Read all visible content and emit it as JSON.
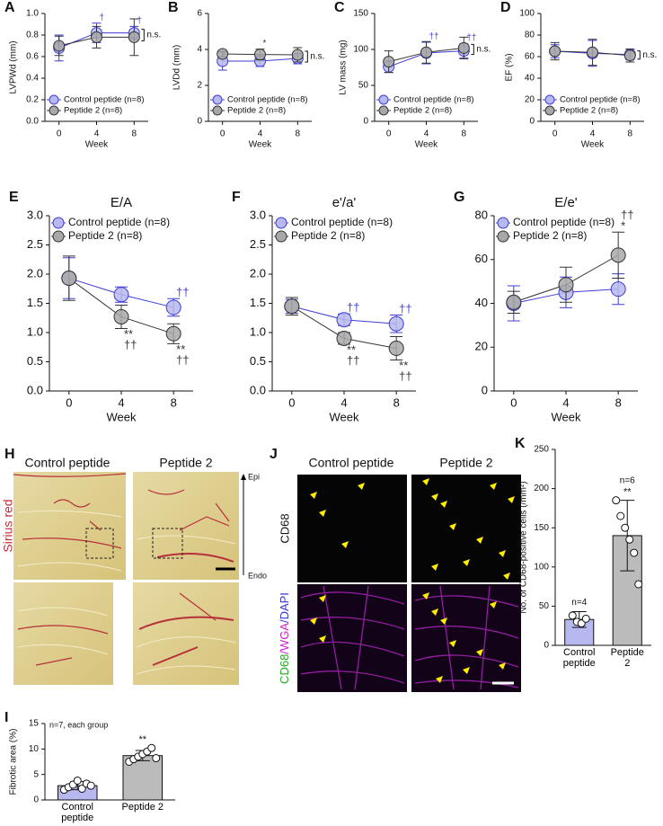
{
  "chart_data": [
    {
      "type": "line",
      "label": "A",
      "ylabel": "LVPWd (mm)",
      "xlabel": "Week",
      "x": [
        0,
        4,
        8
      ],
      "xlim": [
        -1.5,
        9.5
      ],
      "xticks": [
        0,
        4,
        8
      ],
      "ylim": [
        0,
        1
      ],
      "yticks": [
        {
          "value": 0,
          "label": "0.0"
        },
        0.2,
        0.4,
        0.6,
        0.8,
        {
          "value": 1,
          "label": "1.0"
        }
      ],
      "legend": "lower left",
      "bracket_label": "n.s.",
      "series": [
        {
          "name": "Control peptide (n=8)",
          "color": "#3d3dd6",
          "fill": "#b8b8f0",
          "values": [
            0.68,
            0.82,
            0.82
          ],
          "errors": [
            0.12,
            0.09,
            0.06
          ],
          "point_labels": [
            null,
            "†",
            "†"
          ],
          "label_position": "above"
        },
        {
          "name": "Peptide 2 (n=8)",
          "color": "#333333",
          "fill": "#a8a8a8",
          "values": [
            0.7,
            0.78,
            0.78
          ],
          "errors": [
            0.09,
            0.1,
            0.17
          ],
          "point_labels": [
            null,
            null,
            null
          ],
          "label_position": "above"
        }
      ]
    },
    {
      "type": "line",
      "label": "B",
      "ylabel": "LVDd (mm)",
      "xlabel": "Week",
      "x": [
        0,
        4,
        8
      ],
      "xlim": [
        -1.5,
        9.5
      ],
      "xticks": [
        0,
        4,
        8
      ],
      "ylim": [
        0,
        6
      ],
      "yticks": [
        0,
        2,
        4,
        6
      ],
      "legend": "lower left",
      "bracket_label": "n.s.",
      "series": [
        {
          "name": "Control peptide (n=8)",
          "color": "#3d3dd6",
          "fill": "#b8b8f0",
          "values": [
            3.35,
            3.35,
            3.5
          ],
          "errors": [
            0.5,
            0.3,
            0.3
          ],
          "point_labels": [
            null,
            null,
            null
          ],
          "label_position": "above"
        },
        {
          "name": "Peptide 2 (n=8)",
          "color": "#333333",
          "fill": "#a8a8a8",
          "values": [
            3.75,
            3.72,
            3.7
          ],
          "errors": [
            0.15,
            0.3,
            0.4
          ],
          "point_labels": [
            null,
            "*",
            null
          ],
          "label_position": "above"
        }
      ]
    },
    {
      "type": "line",
      "label": "C",
      "ylabel": "LV mass (mg)",
      "xlabel": "Week",
      "x": [
        0,
        4,
        8
      ],
      "xlim": [
        -1.5,
        9.5
      ],
      "xticks": [
        0,
        4,
        8
      ],
      "ylim": [
        0,
        150
      ],
      "yticks": [
        0,
        50,
        100,
        150
      ],
      "legend": "lower left",
      "bracket_label": "n.s.",
      "series": [
        {
          "name": "Control peptide (n=8)",
          "color": "#3d3dd6",
          "fill": "#b8b8f0",
          "values": [
            76,
            95,
            98
          ],
          "errors": [
            8,
            15,
            10
          ],
          "point_labels": [
            null,
            "††",
            "††"
          ],
          "label_position": "above"
        },
        {
          "name": "Peptide 2 (n=8)",
          "color": "#333333",
          "fill": "#a8a8a8",
          "values": [
            83,
            96,
            102
          ],
          "errors": [
            15,
            15,
            15
          ],
          "point_labels": [
            null,
            null,
            null
          ],
          "label_position": "above"
        }
      ]
    },
    {
      "type": "line",
      "label": "D",
      "ylabel": "EF (%)",
      "xlabel": "Week",
      "x": [
        0,
        4,
        8
      ],
      "xlim": [
        -1.5,
        9.5
      ],
      "xticks": [
        0,
        4,
        8
      ],
      "ylim": [
        0,
        100
      ],
      "yticks": [
        0,
        20,
        40,
        60,
        80,
        100
      ],
      "legend": "lower left",
      "bracket_label": "n.s.",
      "series": [
        {
          "name": "Control peptide (n=8)",
          "color": "#3d3dd6",
          "fill": "#b8b8f0",
          "values": [
            65,
            63,
            62
          ],
          "errors": [
            6,
            12,
            5
          ],
          "point_labels": [
            null,
            null,
            null
          ],
          "label_position": "above"
        },
        {
          "name": "Peptide 2 (n=8)",
          "color": "#333333",
          "fill": "#a8a8a8",
          "values": [
            65,
            64,
            61
          ],
          "errors": [
            8,
            12,
            6
          ],
          "point_labels": [
            null,
            null,
            null
          ],
          "label_position": "above"
        }
      ]
    },
    {
      "type": "line",
      "label": "E",
      "title": "E/A",
      "xlabel": "Week",
      "x": [
        0,
        4,
        8
      ],
      "xlim": [
        -1.5,
        9.5
      ],
      "xticks": [
        0,
        4,
        8
      ],
      "ylim": [
        0,
        3
      ],
      "yticks": [
        {
          "value": 0,
          "label": "0.0"
        },
        0.5,
        {
          "value": 1,
          "label": "1.0"
        },
        1.5,
        {
          "value": 2,
          "label": "2.0"
        },
        2.5,
        {
          "value": 3,
          "label": "3.0"
        }
      ],
      "legend": "upper left",
      "series": [
        {
          "name": "Control peptide (n=8)",
          "color": "#3d3dd6",
          "fill": "#b8b8f0",
          "values": [
            1.93,
            1.65,
            1.43
          ],
          "errors": [
            0.35,
            0.13,
            0.15
          ],
          "point_labels": [
            null,
            null,
            "††"
          ],
          "label_position": "above"
        },
        {
          "name": "Peptide 2 (n=8)",
          "color": "#333333",
          "fill": "#a8a8a8",
          "values": [
            1.93,
            1.27,
            0.98
          ],
          "errors": [
            0.38,
            0.2,
            0.17
          ],
          "point_labels": [
            null,
            [
              "**",
              "††"
            ],
            [
              "**",
              "††"
            ]
          ],
          "label_position": "below"
        }
      ]
    },
    {
      "type": "line",
      "label": "F",
      "title": "e'/a'",
      "xlabel": "Week",
      "x": [
        0,
        4,
        8
      ],
      "xlim": [
        -1.5,
        9.5
      ],
      "xticks": [
        0,
        4,
        8
      ],
      "ylim": [
        0,
        3
      ],
      "yticks": [
        {
          "value": 0,
          "label": "0.0"
        },
        0.5,
        {
          "value": 1,
          "label": "1.0"
        },
        1.5,
        {
          "value": 2,
          "label": "2.0"
        },
        2.5,
        {
          "value": 3,
          "label": "3.0"
        }
      ],
      "legend": "upper left",
      "series": [
        {
          "name": "Control peptide (n=8)",
          "color": "#3d3dd6",
          "fill": "#b8b8f0",
          "values": [
            1.45,
            1.22,
            1.15
          ],
          "errors": [
            0.12,
            0.1,
            0.15
          ],
          "point_labels": [
            null,
            "††",
            "††"
          ],
          "label_position": "above"
        },
        {
          "name": "Peptide 2 (n=8)",
          "color": "#333333",
          "fill": "#a8a8a8",
          "values": [
            1.45,
            0.9,
            0.73
          ],
          "errors": [
            0.15,
            0.1,
            0.2
          ],
          "point_labels": [
            null,
            [
              "**",
              "††"
            ],
            [
              "**",
              "††"
            ]
          ],
          "label_position": "below"
        }
      ]
    },
    {
      "type": "line",
      "label": "G",
      "title": "E/e'",
      "xlabel": "Week",
      "x": [
        0,
        4,
        8
      ],
      "xlim": [
        -1.5,
        9.5
      ],
      "xticks": [
        0,
        4,
        8
      ],
      "ylim": [
        0,
        80
      ],
      "yticks": [
        0,
        20,
        40,
        60,
        80
      ],
      "legend": "upper left",
      "series": [
        {
          "name": "Control peptide (n=8)",
          "color": "#3d3dd6",
          "fill": "#b8b8f0",
          "values": [
            40,
            45,
            46.5
          ],
          "errors": [
            8,
            7,
            7
          ],
          "point_labels": [
            null,
            null,
            null
          ],
          "label_position": "above"
        },
        {
          "name": "Peptide 2 (n=8)",
          "color": "#333333",
          "fill": "#a8a8a8",
          "values": [
            40.5,
            48.5,
            62
          ],
          "errors": [
            5,
            8,
            10.5
          ],
          "point_labels": [
            null,
            null,
            [
              "††",
              "*"
            ]
          ],
          "label_position": "above"
        }
      ]
    },
    {
      "type": "bar",
      "label": "K",
      "ylabel": "No. of CD68-positive cells (/mm²)",
      "categories": [
        "Control peptide",
        "Peptide 2"
      ],
      "values": [
        33,
        140
      ],
      "errors": [
        10,
        45
      ],
      "colors": [
        "#b8b8f0",
        "#bbbbbb"
      ],
      "points": [
        [
          38,
          30,
          28,
          34
        ],
        [
          185,
          165,
          150,
          135,
          118,
          78
        ]
      ],
      "bar_labels": [
        "n=4",
        "n=6"
      ],
      "significance": [
        null,
        "**"
      ],
      "ylim": [
        0,
        250
      ],
      "yticks": [
        0,
        50,
        100,
        150,
        200,
        250
      ]
    },
    {
      "type": "bar",
      "label": "I",
      "ylabel": "Fibrotic area (%)",
      "note": "n=7, each group",
      "categories": [
        "Control peptide",
        "Peptide 2"
      ],
      "values": [
        2.8,
        8.7
      ],
      "errors": [
        0.8,
        1.0
      ],
      "colors": [
        "#b8b8f0",
        "#bbbbbb"
      ],
      "points": [
        [
          2,
          2.5,
          3,
          3.8,
          2.2,
          3.2,
          2.8
        ],
        [
          7.5,
          8,
          8.5,
          9,
          9.5,
          10.2,
          8.2
        ]
      ],
      "bar_labels": [
        null,
        null
      ],
      "significance": [
        null,
        "**"
      ],
      "ylim": [
        0,
        15
      ],
      "yticks": [
        0,
        5,
        10,
        15
      ]
    }
  ],
  "micrographs": {
    "H": {
      "label": "H",
      "columns": [
        "Control peptide",
        "Peptide 2"
      ],
      "stain": "Sirius red",
      "top": "Epi",
      "bottom": "Endo"
    },
    "J": {
      "label": "J",
      "columns": [
        "Control peptide",
        "Peptide 2"
      ],
      "row": "CD68",
      "merge": [
        {
          "text": "CD68",
          "color": "#22aa22"
        },
        {
          "text": "/WGA",
          "color": "#cc22cc"
        },
        {
          "text": "/DAPI",
          "color": "#3333cc"
        }
      ]
    }
  }
}
